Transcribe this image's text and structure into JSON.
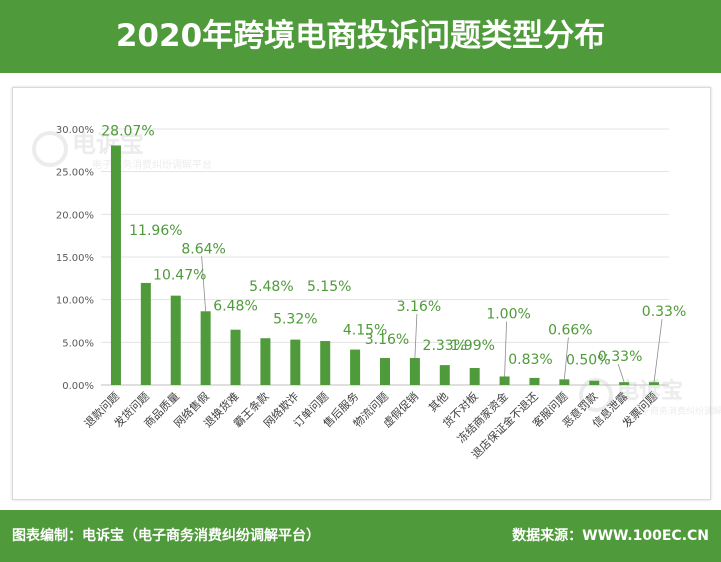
{
  "title": "2020年跨境电商投诉问题类型分布",
  "footer": {
    "left": "图表编制：电诉宝（电子商务消费纠纷调解平台）",
    "right": "数据来源：WWW.100EC.CN"
  },
  "watermark": {
    "brand": "电诉宝",
    "sub": "电子商务消费纠纷调解平台"
  },
  "colors": {
    "header": "#4f9a3a",
    "bar": "#4f9a3a",
    "label": "#4f9a3a"
  },
  "chart_data": {
    "type": "bar",
    "title": "2020年跨境电商投诉问题类型分布",
    "categories": [
      "退款问题",
      "发货问题",
      "商品质量",
      "网络售假",
      "退换货难",
      "霸王条款",
      "网络欺诈",
      "订单问题",
      "售后服务",
      "物流问题",
      "虚假促销",
      "其他",
      "货不对板",
      "冻结商家资金",
      "退店保证金不退还",
      "客服问题",
      "恶意罚款",
      "信息泄露",
      "发票问题"
    ],
    "values": [
      28.07,
      11.96,
      10.47,
      8.64,
      6.48,
      5.48,
      5.32,
      5.15,
      4.15,
      3.16,
      3.16,
      2.33,
      1.99,
      1.0,
      0.83,
      0.66,
      0.5,
      0.33,
      0.33
    ],
    "data_labels": [
      "28.07%",
      "11.96%",
      "10.47%",
      "8.64%",
      "6.48%",
      "5.48%",
      "5.32%",
      "5.15%",
      "4.15%",
      "3.16%",
      "3.16%",
      "2.33%",
      "1.99%",
      "1.00%",
      "0.83%",
      "0.66%",
      "0.50%",
      "0.33%",
      "0.33%"
    ],
    "yticks": [
      "0.00%",
      "5.00%",
      "10.00%",
      "15.00%",
      "20.00%",
      "25.00%",
      "30.00%"
    ],
    "ylim": [
      0,
      30
    ],
    "grid": true
  }
}
